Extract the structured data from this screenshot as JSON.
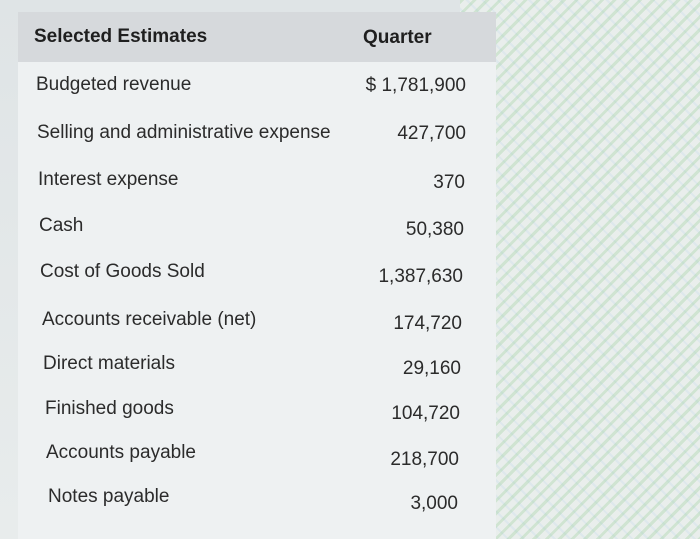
{
  "table": {
    "header": {
      "label": "Selected Estimates",
      "value": "Quarter"
    },
    "rows": [
      {
        "label": "Budgeted revenue",
        "value": "$ 1,781,900"
      },
      {
        "label": "Selling and administrative expense",
        "value": "427,700"
      },
      {
        "label": "Interest expense",
        "value": "370"
      },
      {
        "label": "Cash",
        "value": "50,380"
      },
      {
        "label": "Cost of Goods Sold",
        "value": "1,387,630"
      },
      {
        "label": "Accounts receivable (net)",
        "value": "174,720"
      },
      {
        "label": "Direct materials",
        "value": "29,160"
      },
      {
        "label": "Finished goods",
        "value": "104,720"
      },
      {
        "label": "Accounts payable",
        "value": "218,700"
      },
      {
        "label": "Notes payable",
        "value": "3,000"
      }
    ]
  }
}
